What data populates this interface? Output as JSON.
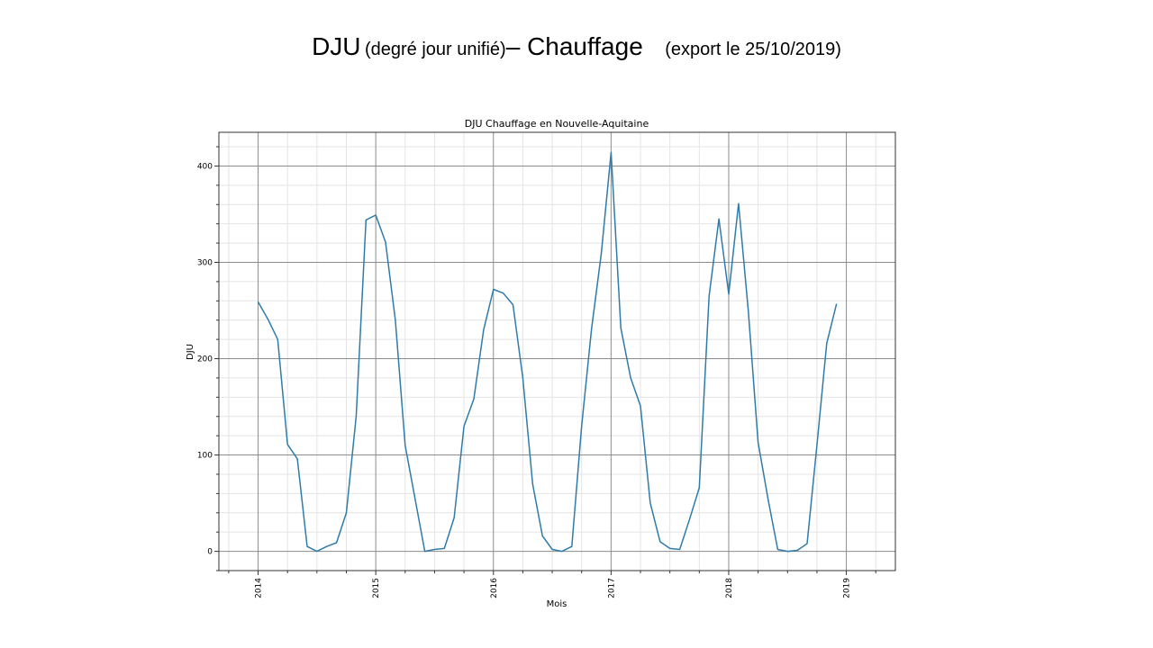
{
  "slide": {
    "title_main": "DJU",
    "title_paren": "(degré jour unifié)",
    "title_dash_part": "– Chauffage",
    "title_export": "(export le 25/10/2019)"
  },
  "colors": {
    "line": "#2f7bab",
    "grid_major": "#8c8c8c",
    "grid_minor": "#e4e4e4",
    "frame": "#333333"
  },
  "chart_data": {
    "type": "line",
    "title": "DJU Chauffage en Nouvelle-Aquitaine",
    "xlabel": "Mois",
    "ylabel": "DJU",
    "grid": true,
    "xlim": [
      "2013-09",
      "2019-06"
    ],
    "ylim": [
      -20,
      435
    ],
    "yticks": [
      0,
      100,
      200,
      300,
      400
    ],
    "xticks": [
      "2014",
      "2015",
      "2016",
      "2017",
      "2018",
      "2019"
    ],
    "series": [
      {
        "x": [
          "2014-01",
          "2014-02",
          "2014-03",
          "2014-04",
          "2014-05",
          "2014-06",
          "2014-07",
          "2014-08",
          "2014-09",
          "2014-10",
          "2014-11",
          "2014-12",
          "2015-01",
          "2015-02",
          "2015-03",
          "2015-04",
          "2015-05",
          "2015-06",
          "2015-07",
          "2015-08",
          "2015-09",
          "2015-10",
          "2015-11",
          "2015-12",
          "2016-01",
          "2016-02",
          "2016-03",
          "2016-04",
          "2016-05",
          "2016-06",
          "2016-07",
          "2016-08",
          "2016-09",
          "2016-10",
          "2016-11",
          "2016-12",
          "2017-01",
          "2017-02",
          "2017-03",
          "2017-04",
          "2017-05",
          "2017-06",
          "2017-07",
          "2017-08",
          "2017-09",
          "2017-10",
          "2017-11",
          "2017-12",
          "2018-01",
          "2018-02",
          "2018-03",
          "2018-04",
          "2018-05",
          "2018-06",
          "2018-07",
          "2018-08",
          "2018-09",
          "2018-10",
          "2018-11",
          "2018-12"
        ],
        "values": [
          259,
          241,
          220,
          111,
          96,
          5,
          0,
          5,
          9,
          40,
          140,
          344,
          349,
          321,
          240,
          110,
          55,
          0,
          2,
          3,
          35,
          130,
          158,
          230,
          272,
          268,
          256,
          180,
          70,
          16,
          2,
          0,
          5,
          130,
          230,
          309,
          414,
          232,
          180,
          151,
          50,
          10,
          3,
          2,
          33,
          66,
          265,
          345,
          267,
          361,
          250,
          113,
          55,
          2,
          0,
          1,
          8,
          110,
          216,
          257
        ]
      }
    ]
  }
}
